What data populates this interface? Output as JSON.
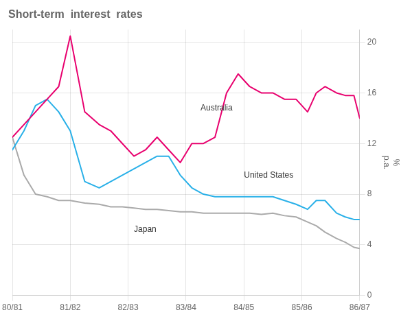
{
  "chart_data": {
    "type": "line",
    "title": "Short-term  interest  rates",
    "ylabel": [
      "%",
      "p.a."
    ],
    "x": [
      0,
      0.4,
      0.8,
      1.2,
      1.6,
      2.0,
      2.5,
      3.0,
      3.4,
      3.8,
      4.2,
      4.6,
      5.0,
      5.4,
      5.8,
      6.2,
      6.6,
      7.0,
      7.4,
      7.8,
      8.2,
      8.6,
      9.0,
      9.4,
      9.8,
      10.2,
      10.5,
      10.8,
      11.2,
      11.5,
      11.8,
      12.0
    ],
    "series": [
      {
        "name": "Australia",
        "color": "#e8006e",
        "values": [
          12.5,
          13.5,
          14.5,
          15.5,
          16.5,
          20.5,
          14.5,
          13.5,
          13.0,
          12.0,
          11.0,
          11.5,
          12.5,
          11.5,
          10.5,
          12.0,
          12.0,
          12.5,
          16.0,
          17.5,
          16.5,
          16.0,
          16.0,
          15.5,
          15.5,
          14.5,
          16.0,
          16.5,
          16.0,
          15.8,
          15.8,
          14.0
        ]
      },
      {
        "name": "United States",
        "color": "#29b0e8",
        "values": [
          11.5,
          13.0,
          15.0,
          15.5,
          14.5,
          13.0,
          9.0,
          8.5,
          9.0,
          9.5,
          10.0,
          10.5,
          11.0,
          11.0,
          9.5,
          8.5,
          8.0,
          7.8,
          7.8,
          7.8,
          7.8,
          7.8,
          7.8,
          7.5,
          7.2,
          6.8,
          7.5,
          7.5,
          6.5,
          6.2,
          6.0,
          6.0
        ]
      },
      {
        "name": "Japan",
        "color": "#aaaaaa",
        "values": [
          12.5,
          9.5,
          8.0,
          7.8,
          7.5,
          7.5,
          7.3,
          7.2,
          7.0,
          7.0,
          6.9,
          6.8,
          6.8,
          6.7,
          6.6,
          6.6,
          6.5,
          6.5,
          6.5,
          6.5,
          6.5,
          6.4,
          6.5,
          6.3,
          6.2,
          5.8,
          5.5,
          5.0,
          4.5,
          4.2,
          3.8,
          3.7
        ]
      }
    ],
    "annotations": [
      {
        "text": "Australia",
        "x": 6.5,
        "y": 14.8
      },
      {
        "text": "United States",
        "x": 8.0,
        "y": 9.5
      },
      {
        "text": "Japan",
        "x": 4.2,
        "y": 5.2
      }
    ],
    "xlim": [
      0,
      12
    ],
    "xticks": [
      {
        "value": 0,
        "label": "80/81"
      },
      {
        "value": 2,
        "label": "81/82"
      },
      {
        "value": 4,
        "label": "82/83"
      },
      {
        "value": 6,
        "label": "83/84"
      },
      {
        "value": 8,
        "label": "84/85"
      },
      {
        "value": 10,
        "label": "85/86"
      },
      {
        "value": 12,
        "label": "86/87"
      }
    ],
    "ylim": [
      0,
      21
    ],
    "yticks": [
      0,
      4,
      8,
      12,
      16,
      20
    ],
    "grid": true
  }
}
